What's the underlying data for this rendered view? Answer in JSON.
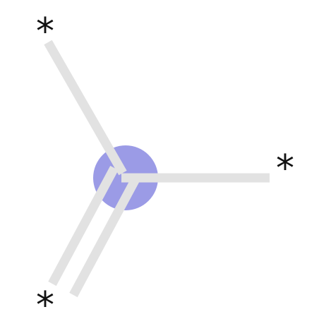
{
  "colors": {
    "background": "#ffffff",
    "bond": "#e2e2e2",
    "atom_highlight": "#9b9be6",
    "label": "#111111"
  },
  "diagram": {
    "center_atom": {
      "highlighted": true
    },
    "attachment_points": [
      {
        "label": "*",
        "bond_order": 1
      },
      {
        "label": "*",
        "bond_order": 1
      },
      {
        "label": "*",
        "bond_order": 2
      }
    ]
  }
}
